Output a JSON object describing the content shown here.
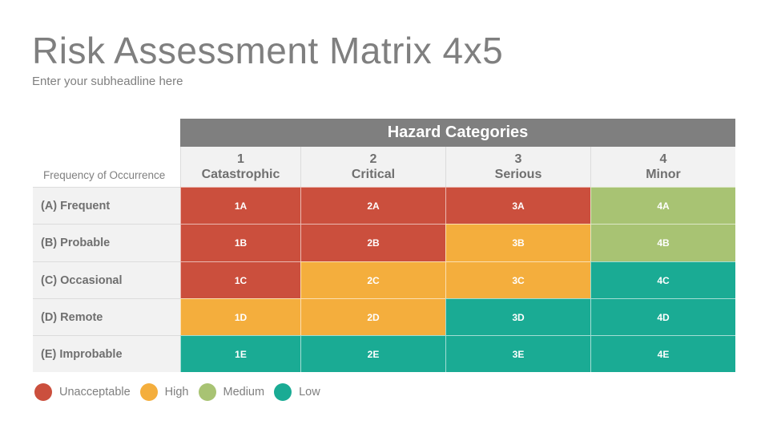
{
  "title": "Risk Assessment Matrix 4x5",
  "subtitle": "Enter your subheadline here",
  "matrix": {
    "header": "Hazard Categories",
    "row_axis_label": "Frequency of Occurrence",
    "columns": [
      {
        "number": "1",
        "label": "Catastrophic"
      },
      {
        "number": "2",
        "label": "Critical"
      },
      {
        "number": "3",
        "label": "Serious"
      },
      {
        "number": "4",
        "label": "Minor"
      }
    ],
    "rows": [
      {
        "label": "(A)  Frequent",
        "cells": [
          {
            "code": "1A",
            "level": "unacceptable"
          },
          {
            "code": "2A",
            "level": "unacceptable"
          },
          {
            "code": "3A",
            "level": "unacceptable"
          },
          {
            "code": "4A",
            "level": "medium"
          }
        ]
      },
      {
        "label": "(B) Probable",
        "cells": [
          {
            "code": "1B",
            "level": "unacceptable"
          },
          {
            "code": "2B",
            "level": "unacceptable"
          },
          {
            "code": "3B",
            "level": "high"
          },
          {
            "code": "4B",
            "level": "medium"
          }
        ]
      },
      {
        "label": "(C) Occasional",
        "cells": [
          {
            "code": "1C",
            "level": "unacceptable"
          },
          {
            "code": "2C",
            "level": "high"
          },
          {
            "code": "3C",
            "level": "high"
          },
          {
            "code": "4C",
            "level": "low"
          }
        ]
      },
      {
        "label": "(D) Remote",
        "cells": [
          {
            "code": "1D",
            "level": "high"
          },
          {
            "code": "2D",
            "level": "high"
          },
          {
            "code": "3D",
            "level": "low"
          },
          {
            "code": "4D",
            "level": "low"
          }
        ]
      },
      {
        "label": "(E) Improbable",
        "cells": [
          {
            "code": "1E",
            "level": "low"
          },
          {
            "code": "2E",
            "level": "low"
          },
          {
            "code": "3E",
            "level": "low"
          },
          {
            "code": "4E",
            "level": "low"
          }
        ]
      }
    ]
  },
  "legend": [
    {
      "key": "unacceptable",
      "label": "Unacceptable",
      "color": "#cb4f3d"
    },
    {
      "key": "high",
      "label": "High",
      "color": "#f4ae3d"
    },
    {
      "key": "medium",
      "label": "Medium",
      "color": "#a8c373"
    },
    {
      "key": "low",
      "label": "Low",
      "color": "#1aab94"
    }
  ]
}
